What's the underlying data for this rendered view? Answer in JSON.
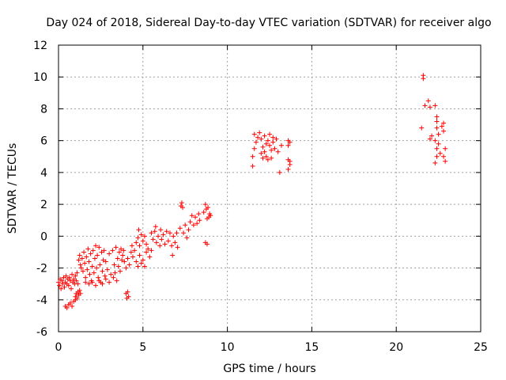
{
  "chart_data": {
    "type": "scatter",
    "title": "Day 024 of 2018, Sidereal Day-to-day VTEC variation (SDTVAR) for receiver algo",
    "xlabel": "GPS time / hours",
    "ylabel": "SDTVAR / TECUs",
    "xlim": [
      0,
      25
    ],
    "ylim": [
      -6,
      12
    ],
    "xticks": [
      0,
      5,
      10,
      15,
      20,
      25
    ],
    "yticks": [
      -6,
      -4,
      -2,
      0,
      2,
      4,
      6,
      8,
      10,
      12
    ],
    "grid": true,
    "marker": "+",
    "color": "#ff0000",
    "series": [
      {
        "name": "SDTVAR",
        "points": [
          [
            0.0,
            -2.9
          ],
          [
            0.05,
            -3.1
          ],
          [
            0.1,
            -2.7
          ],
          [
            0.15,
            -3.3
          ],
          [
            0.2,
            -2.8
          ],
          [
            0.25,
            -3.0
          ],
          [
            0.3,
            -2.6
          ],
          [
            0.35,
            -3.2
          ],
          [
            0.4,
            -2.9
          ],
          [
            0.45,
            -2.5
          ],
          [
            0.5,
            -3.0
          ],
          [
            0.55,
            -2.7
          ],
          [
            0.6,
            -3.1
          ],
          [
            0.65,
            -2.6
          ],
          [
            0.7,
            -2.8
          ],
          [
            0.75,
            -3.3
          ],
          [
            0.8,
            -2.4
          ],
          [
            0.85,
            -2.9
          ],
          [
            0.9,
            -2.7
          ],
          [
            0.95,
            -3.0
          ],
          [
            1.0,
            -2.5
          ],
          [
            1.05,
            -2.8
          ],
          [
            1.1,
            -2.3
          ],
          [
            1.15,
            -3.0
          ],
          [
            0.4,
            -4.4
          ],
          [
            0.5,
            -4.5
          ],
          [
            0.6,
            -4.3
          ],
          [
            0.7,
            -4.2
          ],
          [
            0.8,
            -4.4
          ],
          [
            0.9,
            -4.1
          ],
          [
            1.0,
            -4.0
          ],
          [
            1.0,
            -3.8
          ],
          [
            1.05,
            -3.6
          ],
          [
            1.1,
            -3.9
          ],
          [
            1.15,
            -3.5
          ],
          [
            1.2,
            -3.7
          ],
          [
            1.25,
            -3.4
          ],
          [
            1.3,
            -3.6
          ],
          [
            1.2,
            -1.5
          ],
          [
            1.25,
            -1.2
          ],
          [
            1.3,
            -1.8
          ],
          [
            1.35,
            -2.0
          ],
          [
            1.4,
            -1.4
          ],
          [
            1.45,
            -2.2
          ],
          [
            1.5,
            -1.0
          ],
          [
            1.55,
            -1.7
          ],
          [
            1.6,
            -2.6
          ],
          [
            1.65,
            -1.3
          ],
          [
            1.7,
            -2.1
          ],
          [
            1.75,
            -0.8
          ],
          [
            1.8,
            -1.6
          ],
          [
            1.85,
            -2.4
          ],
          [
            1.9,
            -1.1
          ],
          [
            1.95,
            -2.8
          ],
          [
            2.0,
            -1.9
          ],
          [
            2.05,
            -0.9
          ],
          [
            2.1,
            -2.3
          ],
          [
            2.15,
            -1.4
          ],
          [
            2.2,
            -0.6
          ],
          [
            2.25,
            -2.0
          ],
          [
            2.3,
            -1.2
          ],
          [
            2.35,
            -2.6
          ],
          [
            2.4,
            -0.7
          ],
          [
            2.45,
            -1.8
          ],
          [
            2.5,
            -2.9
          ],
          [
            2.55,
            -1.0
          ],
          [
            2.6,
            -2.2
          ],
          [
            2.65,
            -1.5
          ],
          [
            2.7,
            -0.9
          ],
          [
            2.75,
            -2.5
          ],
          [
            1.6,
            -2.9
          ],
          [
            1.8,
            -3.0
          ],
          [
            2.0,
            -2.9
          ],
          [
            2.2,
            -3.1
          ],
          [
            2.4,
            -2.8
          ],
          [
            2.6,
            -3.0
          ],
          [
            2.8,
            -2.7
          ],
          [
            3.0,
            -2.9
          ],
          [
            2.8,
            -1.6
          ],
          [
            2.9,
            -2.1
          ],
          [
            3.0,
            -1.1
          ],
          [
            3.1,
            -2.4
          ],
          [
            3.2,
            -0.9
          ],
          [
            3.3,
            -1.8
          ],
          [
            3.4,
            -0.7
          ],
          [
            3.5,
            -1.4
          ],
          [
            3.25,
            -2.6
          ],
          [
            3.35,
            -2.3
          ],
          [
            3.45,
            -2.8
          ],
          [
            3.55,
            -1.9
          ],
          [
            3.6,
            -1.0
          ],
          [
            3.65,
            -2.2
          ],
          [
            3.7,
            -0.8
          ],
          [
            3.75,
            -1.5
          ],
          [
            3.8,
            -1.2
          ],
          [
            3.85,
            -0.9
          ],
          [
            3.9,
            -1.6
          ],
          [
            4.0,
            -2.0
          ],
          [
            4.1,
            -1.4
          ],
          [
            4.2,
            -1.8
          ],
          [
            4.3,
            -1.0
          ],
          [
            4.35,
            -0.6
          ],
          [
            4.0,
            -3.6
          ],
          [
            4.05,
            -3.9
          ],
          [
            4.1,
            -3.5
          ],
          [
            4.15,
            -3.8
          ],
          [
            4.4,
            -1.3
          ],
          [
            4.5,
            -0.9
          ],
          [
            4.6,
            -1.6
          ],
          [
            4.7,
            -1.9
          ],
          [
            4.8,
            -1.2
          ],
          [
            4.9,
            -1.7
          ],
          [
            5.0,
            -1.5
          ],
          [
            5.1,
            -1.9
          ],
          [
            4.6,
            -0.4
          ],
          [
            4.7,
            -0.1
          ],
          [
            4.75,
            0.4
          ],
          [
            4.8,
            -0.6
          ],
          [
            4.9,
            0.1
          ],
          [
            5.0,
            -0.3
          ],
          [
            5.1,
            0.0
          ],
          [
            5.2,
            -0.5
          ],
          [
            5.2,
            -1.0
          ],
          [
            5.3,
            -0.8
          ],
          [
            5.4,
            -1.3
          ],
          [
            5.5,
            -0.9
          ],
          [
            5.5,
            0.2
          ],
          [
            5.6,
            -0.2
          ],
          [
            5.7,
            0.3
          ],
          [
            5.75,
            0.6
          ],
          [
            5.8,
            -0.4
          ],
          [
            5.9,
            0.0
          ],
          [
            6.0,
            -0.6
          ],
          [
            6.05,
            0.4
          ],
          [
            6.1,
            -0.2
          ],
          [
            6.2,
            0.1
          ],
          [
            6.3,
            -0.5
          ],
          [
            6.4,
            0.3
          ],
          [
            6.5,
            -0.3
          ],
          [
            6.6,
            0.2
          ],
          [
            6.7,
            -0.6
          ],
          [
            6.8,
            0.0
          ],
          [
            6.9,
            -0.4
          ],
          [
            7.0,
            0.2
          ],
          [
            6.75,
            -1.2
          ],
          [
            7.05,
            -0.7
          ],
          [
            7.2,
            0.5
          ],
          [
            7.25,
            1.9
          ],
          [
            7.3,
            2.1
          ],
          [
            7.35,
            1.8
          ],
          [
            7.4,
            0.2
          ],
          [
            7.5,
            0.7
          ],
          [
            7.6,
            -0.1
          ],
          [
            7.7,
            0.4
          ],
          [
            7.8,
            0.9
          ],
          [
            7.9,
            1.3
          ],
          [
            8.0,
            0.7
          ],
          [
            8.1,
            1.2
          ],
          [
            8.2,
            0.8
          ],
          [
            8.3,
            1.4
          ],
          [
            8.35,
            1.0
          ],
          [
            8.6,
            1.5
          ],
          [
            8.7,
            2.0
          ],
          [
            8.75,
            1.7
          ],
          [
            8.8,
            1.1
          ],
          [
            8.85,
            1.8
          ],
          [
            8.9,
            1.2
          ],
          [
            8.95,
            1.4
          ],
          [
            9.0,
            1.3
          ],
          [
            8.7,
            -0.4
          ],
          [
            8.8,
            -0.5
          ],
          [
            11.5,
            5.0
          ],
          [
            11.5,
            4.4
          ],
          [
            11.6,
            5.5
          ],
          [
            11.6,
            6.4
          ],
          [
            11.7,
            5.9
          ],
          [
            11.8,
            6.2
          ],
          [
            11.9,
            6.5
          ],
          [
            12.0,
            6.1
          ],
          [
            12.0,
            5.2
          ],
          [
            12.1,
            5.6
          ],
          [
            12.1,
            4.9
          ],
          [
            12.2,
            5.3
          ],
          [
            12.2,
            6.3
          ],
          [
            12.3,
            5.0
          ],
          [
            12.3,
            5.8
          ],
          [
            12.4,
            6.0
          ],
          [
            12.4,
            4.8
          ],
          [
            12.5,
            5.7
          ],
          [
            12.5,
            6.4
          ],
          [
            12.6,
            5.4
          ],
          [
            12.6,
            4.9
          ],
          [
            12.7,
            6.2
          ],
          [
            12.7,
            5.9
          ],
          [
            12.8,
            5.5
          ],
          [
            12.9,
            6.1
          ],
          [
            13.0,
            5.3
          ],
          [
            13.1,
            4.0
          ],
          [
            13.2,
            5.7
          ],
          [
            13.6,
            6.0
          ],
          [
            13.6,
            5.7
          ],
          [
            13.7,
            5.9
          ],
          [
            13.6,
            4.8
          ],
          [
            13.7,
            4.5
          ],
          [
            13.6,
            4.2
          ],
          [
            13.7,
            4.7
          ],
          [
            21.6,
            10.1
          ],
          [
            21.6,
            9.9
          ],
          [
            21.5,
            6.8
          ],
          [
            21.7,
            8.2
          ],
          [
            21.9,
            8.5
          ],
          [
            22.0,
            8.1
          ],
          [
            22.1,
            6.3
          ],
          [
            22.0,
            6.1
          ],
          [
            22.3,
            8.2
          ],
          [
            22.4,
            7.5
          ],
          [
            22.4,
            6.8
          ],
          [
            22.3,
            6.0
          ],
          [
            22.4,
            5.5
          ],
          [
            22.4,
            5.0
          ],
          [
            22.3,
            4.6
          ],
          [
            22.4,
            7.2
          ],
          [
            22.5,
            6.4
          ],
          [
            22.5,
            5.8
          ],
          [
            22.6,
            5.2
          ],
          [
            22.7,
            6.9
          ],
          [
            22.8,
            6.6
          ],
          [
            22.8,
            7.1
          ],
          [
            22.9,
            5.5
          ],
          [
            22.9,
            4.7
          ],
          [
            22.8,
            5.0
          ]
        ]
      }
    ]
  }
}
